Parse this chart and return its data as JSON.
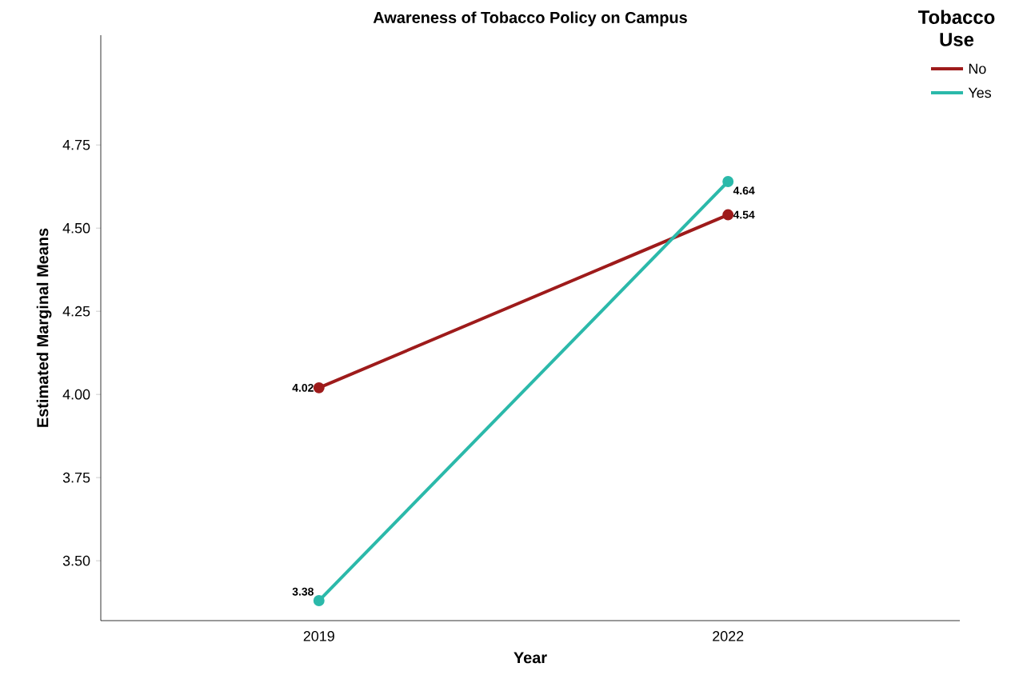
{
  "chart_data": {
    "type": "line",
    "title": "Awareness of Tobacco Policy on Campus",
    "xlabel": "Year",
    "ylabel": "Estimated Marginal Means",
    "legend_title": "Tobacco Use",
    "x": [
      2019,
      2022
    ],
    "series": [
      {
        "name": "No",
        "color": "#9e1b1b",
        "values": [
          4.02,
          4.54
        ]
      },
      {
        "name": "Yes",
        "color": "#2bb9aa",
        "values": [
          3.38,
          4.64
        ]
      }
    ],
    "xlim": [
      2017.4,
      2023.7
    ],
    "xticks": [
      2019,
      2022
    ],
    "ylim": [
      3.32,
      5.08
    ],
    "yticks": [
      {
        "value": 3.5,
        "label": "3.50"
      },
      3.75,
      {
        "value": 4,
        "label": "4.00"
      },
      4.25,
      {
        "value": 4.5,
        "label": "4.50"
      },
      4.75
    ],
    "data_labels": true,
    "marker": "circle",
    "line_style": "solid",
    "grid": false,
    "legend": "top right"
  }
}
